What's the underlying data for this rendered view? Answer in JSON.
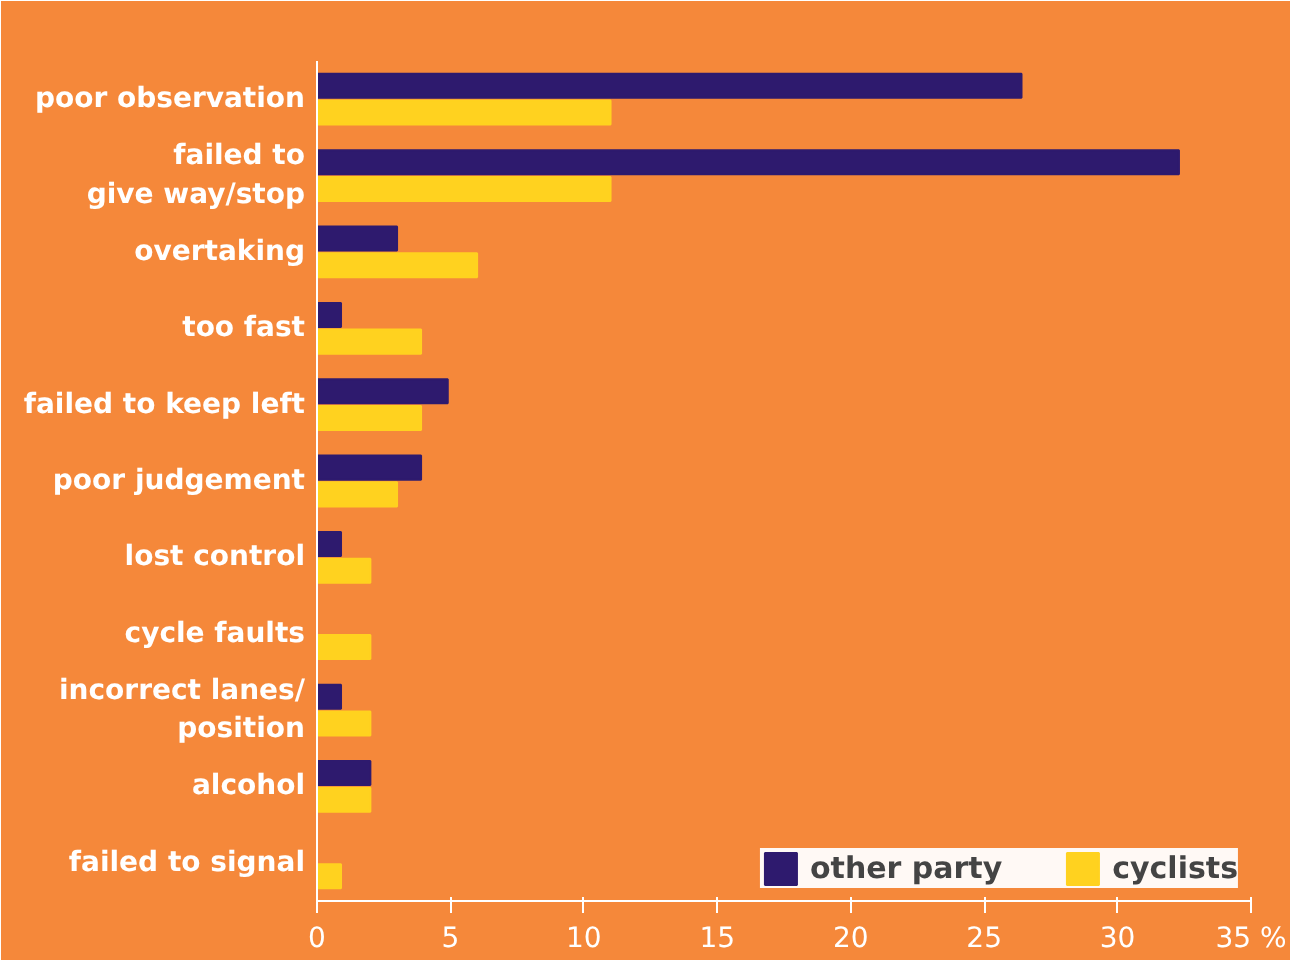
{
  "chart_data": {
    "type": "bar",
    "orientation": "horizontal",
    "categories": [
      "poor observation",
      "failed to\ngive way/stop",
      "overtaking",
      "too fast",
      "failed to keep left",
      "poor judgement",
      "lost control",
      "cycle faults",
      "incorrect lanes/\nposition",
      "alcohol",
      "failed to signal"
    ],
    "series": [
      {
        "name": "other party",
        "color": "#2e1a6e",
        "values": [
          26.4,
          32.3,
          3.0,
          0.9,
          4.9,
          3.9,
          0.9,
          null,
          0.9,
          2.0,
          null
        ]
      },
      {
        "name": "cyclists",
        "color": "#ffd21f",
        "values": [
          11.0,
          11.0,
          6.0,
          3.9,
          3.9,
          3.0,
          2.0,
          2.0,
          2.0,
          2.0,
          0.9
        ]
      }
    ],
    "xlim": [
      0,
      35
    ],
    "xticks": [
      0,
      5,
      10,
      15,
      20,
      25,
      30,
      {
        "value": 35,
        "label": "35 %"
      }
    ],
    "grid": false,
    "legend": "bottom right"
  }
}
